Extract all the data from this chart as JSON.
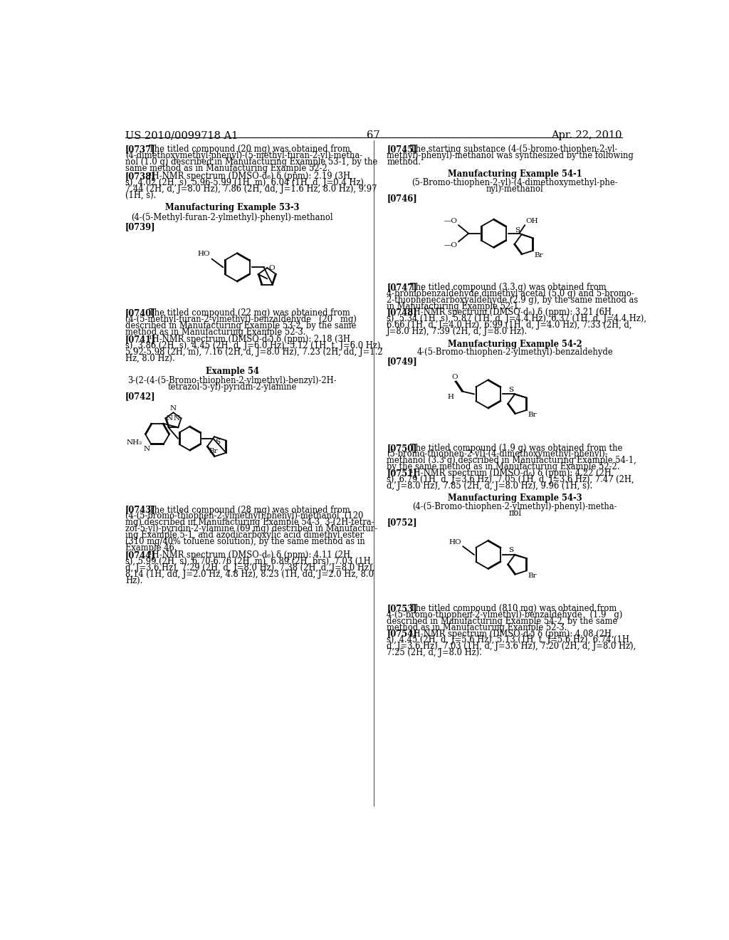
{
  "page_number": "67",
  "header_left": "US 2010/0099718 A1",
  "header_right": "Apr. 22, 2010",
  "background_color": "#ffffff"
}
